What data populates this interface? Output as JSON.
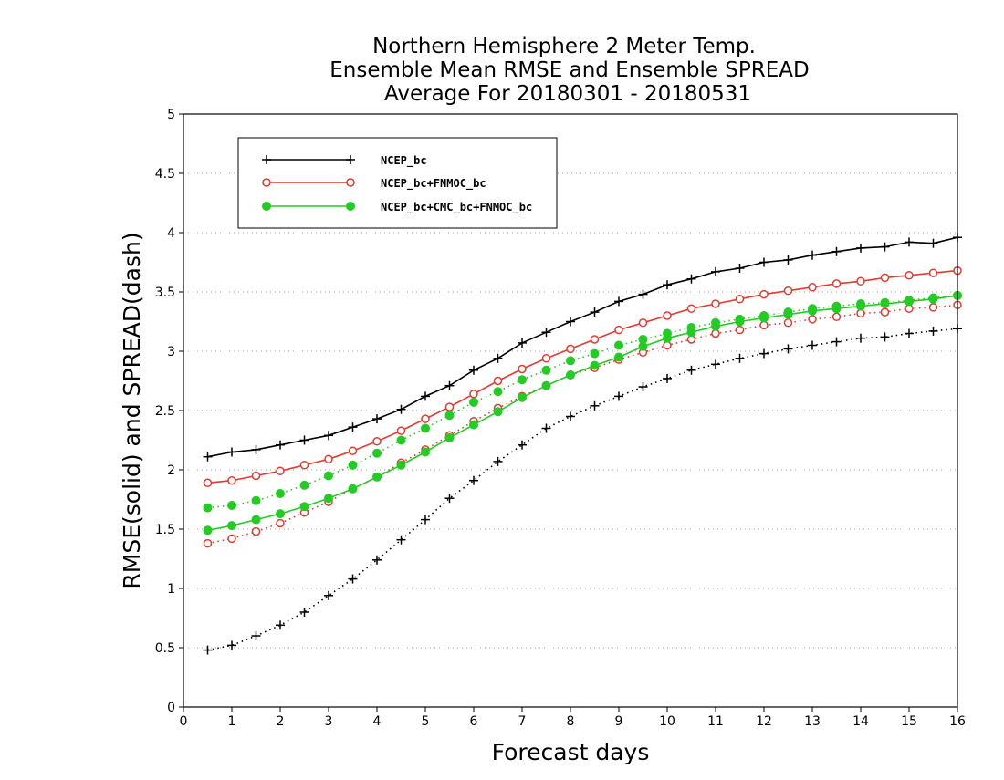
{
  "chart_data": {
    "type": "line",
    "title_lines": [
      "Northern Hemisphere 2 Meter Temp.",
      "Ensemble Mean RMSE and Ensemble SPREAD",
      "Average For 20180301 - 20180531"
    ],
    "xlabel": "Forecast days",
    "ylabel": "RMSE(solid) and SPREAD(dash)",
    "xlim": [
      0,
      16
    ],
    "ylim": [
      0,
      5
    ],
    "xticks": [
      "0",
      "1",
      "2",
      "3",
      "4",
      "5",
      "6",
      "7",
      "8",
      "9",
      "10",
      "11",
      "12",
      "13",
      "14",
      "15",
      "16"
    ],
    "yticks": [
      "0",
      "0.5",
      "1",
      "1.5",
      "2",
      "2.5",
      "3",
      "3.5",
      "4",
      "4.5",
      "5"
    ],
    "grid": "horizontal-dotted",
    "legend_position": "top-left",
    "x": [
      0.5,
      1,
      1.5,
      2,
      2.5,
      3,
      3.5,
      4,
      4.5,
      5,
      5.5,
      6,
      6.5,
      7,
      7.5,
      8,
      8.5,
      9,
      9.5,
      10,
      10.5,
      11,
      11.5,
      12,
      12.5,
      13,
      13.5,
      14,
      14.5,
      15,
      15.5,
      16
    ],
    "series": [
      {
        "name": "NCEP_bc",
        "color": "#000000",
        "marker": "plus",
        "rmse": [
          2.11,
          2.15,
          2.17,
          2.21,
          2.25,
          2.29,
          2.36,
          2.43,
          2.51,
          2.62,
          2.71,
          2.84,
          2.94,
          3.07,
          3.16,
          3.25,
          3.33,
          3.42,
          3.48,
          3.56,
          3.61,
          3.67,
          3.7,
          3.75,
          3.77,
          3.81,
          3.84,
          3.87,
          3.88,
          3.92,
          3.91,
          3.96
        ],
        "spread": [
          0.48,
          0.52,
          0.6,
          0.69,
          0.8,
          0.94,
          1.08,
          1.24,
          1.41,
          1.58,
          1.76,
          1.91,
          2.07,
          2.21,
          2.35,
          2.45,
          2.54,
          2.62,
          2.7,
          2.77,
          2.84,
          2.89,
          2.94,
          2.98,
          3.02,
          3.05,
          3.08,
          3.11,
          3.12,
          3.15,
          3.17,
          3.19
        ]
      },
      {
        "name": "NCEP_bc+FNMOC_bc",
        "color": "#e8392e",
        "marker": "open-circle",
        "rmse": [
          1.89,
          1.91,
          1.95,
          1.99,
          2.04,
          2.09,
          2.16,
          2.24,
          2.33,
          2.43,
          2.53,
          2.64,
          2.75,
          2.85,
          2.94,
          3.02,
          3.1,
          3.18,
          3.24,
          3.3,
          3.36,
          3.4,
          3.44,
          3.48,
          3.51,
          3.54,
          3.57,
          3.59,
          3.62,
          3.64,
          3.66,
          3.68
        ],
        "spread": [
          1.38,
          1.42,
          1.48,
          1.55,
          1.64,
          1.73,
          1.84,
          1.94,
          2.06,
          2.17,
          2.29,
          2.41,
          2.52,
          2.62,
          2.71,
          2.8,
          2.86,
          2.93,
          2.99,
          3.05,
          3.1,
          3.15,
          3.18,
          3.22,
          3.24,
          3.27,
          3.29,
          3.32,
          3.33,
          3.36,
          3.37,
          3.39
        ]
      },
      {
        "name": "NCEP_bc+CMC_bc+FNMOC_bc",
        "color": "#22cc22",
        "marker": "filled-circle",
        "rmse": [
          1.49,
          1.53,
          1.58,
          1.63,
          1.69,
          1.76,
          1.84,
          1.94,
          2.04,
          2.15,
          2.27,
          2.38,
          2.49,
          2.61,
          2.71,
          2.8,
          2.88,
          2.95,
          3.04,
          3.11,
          3.16,
          3.21,
          3.25,
          3.28,
          3.31,
          3.34,
          3.36,
          3.38,
          3.4,
          3.42,
          3.44,
          3.47
        ],
        "spread": [
          1.68,
          1.7,
          1.74,
          1.8,
          1.87,
          1.95,
          2.04,
          2.14,
          2.25,
          2.35,
          2.46,
          2.57,
          2.66,
          2.76,
          2.84,
          2.92,
          2.98,
          3.05,
          3.1,
          3.15,
          3.2,
          3.24,
          3.27,
          3.3,
          3.33,
          3.36,
          3.38,
          3.4,
          3.41,
          3.43,
          3.45,
          3.47
        ]
      }
    ]
  }
}
